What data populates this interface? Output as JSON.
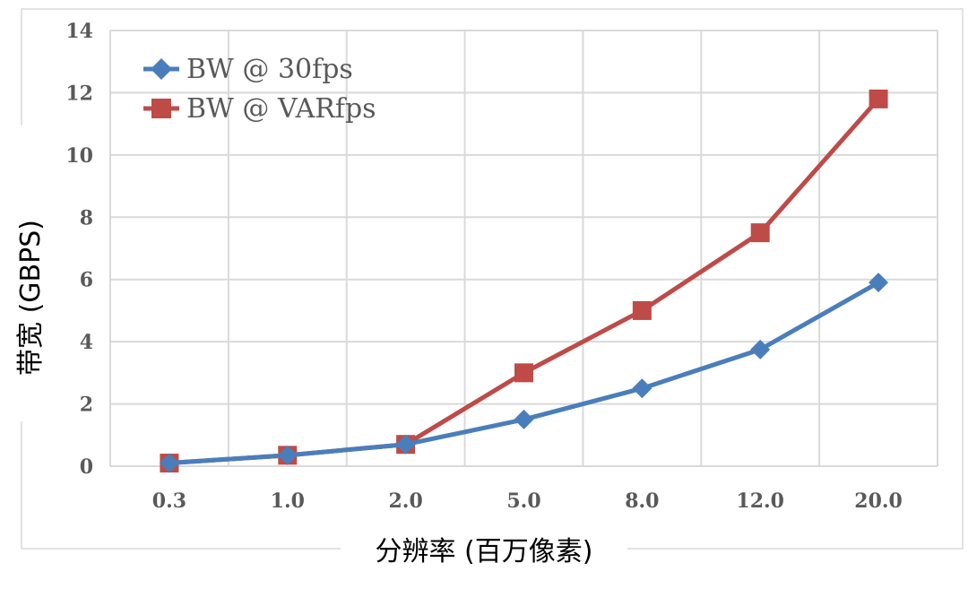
{
  "chart_data": {
    "type": "line",
    "title": "",
    "xlabel": "分辨率 (百万像素)",
    "ylabel": "带宽 (GBPS)",
    "categories": [
      "0.3",
      "1.0",
      "2.0",
      "5.0",
      "8.0",
      "12.0",
      "20.0"
    ],
    "y_ticks": [
      "0",
      "2",
      "4",
      "6",
      "8",
      "10",
      "12",
      "14"
    ],
    "ylim": [
      0,
      14
    ],
    "grid": true,
    "legend_position": "top-left",
    "series": [
      {
        "name": "BW @ 30fps",
        "values": [
          0.1,
          0.35,
          0.7,
          1.5,
          2.5,
          3.75,
          5.9
        ],
        "color": "#4a7ebb",
        "marker": "diamond"
      },
      {
        "name": "BW @ VARfps",
        "values": [
          0.1,
          0.35,
          0.7,
          3.0,
          5.0,
          7.5,
          11.8
        ],
        "color": "#be4b48",
        "marker": "square"
      }
    ]
  }
}
